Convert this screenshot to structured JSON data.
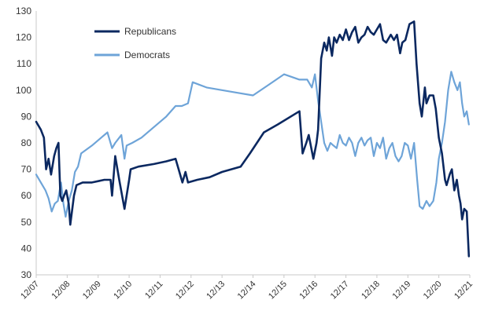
{
  "chart_data": {
    "type": "line",
    "xlabel": "",
    "ylabel": "",
    "ylim": [
      30,
      130
    ],
    "yticks": [
      30,
      40,
      50,
      60,
      70,
      80,
      90,
      100,
      110,
      120,
      130
    ],
    "xtick_labels": [
      "12/07",
      "12/08",
      "12/09",
      "12/10",
      "12/11",
      "12/12",
      "12/13",
      "12/14",
      "12/15",
      "12/16",
      "12/17",
      "12/18",
      "12/19",
      "12/20",
      "12/21"
    ],
    "xlim": [
      0,
      14
    ],
    "grid": false,
    "legend_position": "top-left",
    "series": [
      {
        "name": "Republicans",
        "color": "#0b2860",
        "points": [
          [
            0.0,
            88
          ],
          [
            0.15,
            85
          ],
          [
            0.25,
            82
          ],
          [
            0.32,
            70
          ],
          [
            0.4,
            74
          ],
          [
            0.48,
            68
          ],
          [
            0.58,
            75
          ],
          [
            0.65,
            78
          ],
          [
            0.72,
            80
          ],
          [
            0.78,
            60
          ],
          [
            0.84,
            58
          ],
          [
            0.9,
            60
          ],
          [
            0.97,
            62
          ],
          [
            1.05,
            57
          ],
          [
            1.1,
            49
          ],
          [
            1.22,
            60
          ],
          [
            1.3,
            64
          ],
          [
            1.5,
            65
          ],
          [
            1.8,
            65
          ],
          [
            2.2,
            66
          ],
          [
            2.4,
            66
          ],
          [
            2.45,
            60
          ],
          [
            2.55,
            75
          ],
          [
            2.68,
            66
          ],
          [
            2.85,
            55
          ],
          [
            3.0,
            66
          ],
          [
            3.05,
            70
          ],
          [
            3.3,
            71
          ],
          [
            3.8,
            72
          ],
          [
            4.2,
            73
          ],
          [
            4.5,
            74
          ],
          [
            4.6,
            70
          ],
          [
            4.72,
            65
          ],
          [
            4.82,
            69
          ],
          [
            4.9,
            65
          ],
          [
            5.2,
            66
          ],
          [
            5.6,
            67
          ],
          [
            6.0,
            69
          ],
          [
            6.6,
            71
          ],
          [
            6.9,
            76
          ],
          [
            7.35,
            84
          ],
          [
            7.8,
            87
          ],
          [
            8.5,
            92
          ],
          [
            8.6,
            76
          ],
          [
            8.72,
            80
          ],
          [
            8.8,
            83
          ],
          [
            8.95,
            74
          ],
          [
            9.05,
            80
          ],
          [
            9.1,
            85
          ],
          [
            9.2,
            112
          ],
          [
            9.3,
            118
          ],
          [
            9.38,
            115
          ],
          [
            9.45,
            120
          ],
          [
            9.55,
            113
          ],
          [
            9.62,
            120
          ],
          [
            9.7,
            118
          ],
          [
            9.8,
            121
          ],
          [
            9.9,
            119
          ],
          [
            10.0,
            123
          ],
          [
            10.1,
            119
          ],
          [
            10.2,
            122
          ],
          [
            10.3,
            124
          ],
          [
            10.4,
            118
          ],
          [
            10.5,
            120
          ],
          [
            10.6,
            121
          ],
          [
            10.7,
            124
          ],
          [
            10.8,
            122
          ],
          [
            10.9,
            121
          ],
          [
            11.0,
            123
          ],
          [
            11.1,
            125
          ],
          [
            11.2,
            119
          ],
          [
            11.3,
            118
          ],
          [
            11.45,
            121
          ],
          [
            11.55,
            119
          ],
          [
            11.65,
            121
          ],
          [
            11.75,
            114
          ],
          [
            11.82,
            118
          ],
          [
            11.92,
            119
          ],
          [
            12.05,
            125
          ],
          [
            12.2,
            126
          ],
          [
            12.28,
            110
          ],
          [
            12.38,
            95
          ],
          [
            12.45,
            90
          ],
          [
            12.55,
            101
          ],
          [
            12.6,
            95
          ],
          [
            12.7,
            98
          ],
          [
            12.82,
            98
          ],
          [
            12.9,
            93
          ],
          [
            13.0,
            82
          ],
          [
            13.1,
            76
          ],
          [
            13.2,
            66
          ],
          [
            13.25,
            64
          ],
          [
            13.35,
            68
          ],
          [
            13.42,
            70
          ],
          [
            13.5,
            62
          ],
          [
            13.58,
            66
          ],
          [
            13.65,
            60
          ],
          [
            13.7,
            57
          ],
          [
            13.75,
            51
          ],
          [
            13.82,
            55
          ],
          [
            13.9,
            54
          ],
          [
            13.97,
            37
          ]
        ]
      },
      {
        "name": "Democrats",
        "color": "#6ea4d8",
        "points": [
          [
            0.0,
            68
          ],
          [
            0.15,
            65
          ],
          [
            0.3,
            62
          ],
          [
            0.4,
            59
          ],
          [
            0.5,
            54
          ],
          [
            0.6,
            57
          ],
          [
            0.7,
            58
          ],
          [
            0.8,
            65
          ],
          [
            0.88,
            57
          ],
          [
            0.95,
            52
          ],
          [
            1.05,
            58
          ],
          [
            1.15,
            62
          ],
          [
            1.25,
            69
          ],
          [
            1.35,
            71
          ],
          [
            1.45,
            76
          ],
          [
            1.8,
            79
          ],
          [
            2.1,
            82
          ],
          [
            2.3,
            84
          ],
          [
            2.45,
            78
          ],
          [
            2.55,
            80
          ],
          [
            2.75,
            83
          ],
          [
            2.85,
            74
          ],
          [
            2.92,
            79
          ],
          [
            3.1,
            80
          ],
          [
            3.4,
            82
          ],
          [
            3.8,
            86
          ],
          [
            4.2,
            90
          ],
          [
            4.5,
            94
          ],
          [
            4.7,
            94
          ],
          [
            4.9,
            95
          ],
          [
            5.05,
            103
          ],
          [
            5.5,
            101
          ],
          [
            6.0,
            100
          ],
          [
            6.5,
            99
          ],
          [
            7.0,
            98
          ],
          [
            7.5,
            102
          ],
          [
            8.0,
            106
          ],
          [
            8.5,
            104
          ],
          [
            8.75,
            104
          ],
          [
            8.9,
            101
          ],
          [
            9.0,
            106
          ],
          [
            9.1,
            96
          ],
          [
            9.2,
            88
          ],
          [
            9.3,
            80
          ],
          [
            9.4,
            77
          ],
          [
            9.5,
            80
          ],
          [
            9.6,
            79
          ],
          [
            9.7,
            78
          ],
          [
            9.8,
            83
          ],
          [
            9.9,
            80
          ],
          [
            10.0,
            79
          ],
          [
            10.1,
            82
          ],
          [
            10.2,
            80
          ],
          [
            10.3,
            75
          ],
          [
            10.4,
            80
          ],
          [
            10.5,
            82
          ],
          [
            10.6,
            79
          ],
          [
            10.7,
            81
          ],
          [
            10.8,
            82
          ],
          [
            10.9,
            75
          ],
          [
            11.0,
            80
          ],
          [
            11.1,
            78
          ],
          [
            11.2,
            82
          ],
          [
            11.3,
            74
          ],
          [
            11.4,
            78
          ],
          [
            11.5,
            80
          ],
          [
            11.6,
            75
          ],
          [
            11.7,
            73
          ],
          [
            11.8,
            75
          ],
          [
            11.9,
            80
          ],
          [
            12.0,
            79
          ],
          [
            12.1,
            74
          ],
          [
            12.2,
            80
          ],
          [
            12.3,
            66
          ],
          [
            12.38,
            56
          ],
          [
            12.48,
            55
          ],
          [
            12.6,
            58
          ],
          [
            12.7,
            56
          ],
          [
            12.82,
            58
          ],
          [
            12.92,
            65
          ],
          [
            13.0,
            74
          ],
          [
            13.1,
            80
          ],
          [
            13.2,
            88
          ],
          [
            13.3,
            100
          ],
          [
            13.4,
            107
          ],
          [
            13.5,
            103
          ],
          [
            13.6,
            100
          ],
          [
            13.68,
            103
          ],
          [
            13.75,
            95
          ],
          [
            13.82,
            90
          ],
          [
            13.9,
            92
          ],
          [
            13.97,
            87
          ]
        ]
      }
    ]
  }
}
